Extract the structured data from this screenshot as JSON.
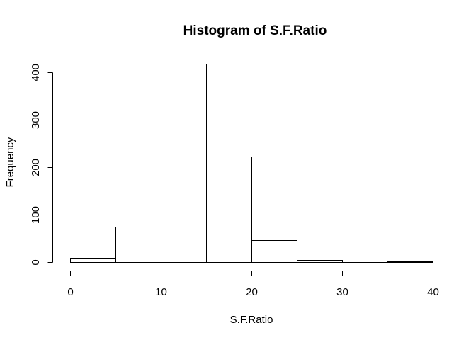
{
  "chart_data": {
    "type": "bar",
    "title": "Histogram of S.F.Ratio",
    "xlabel": "S.F.Ratio",
    "ylabel": "Frequency",
    "bins": [
      {
        "start": 0,
        "end": 5,
        "count": 9
      },
      {
        "start": 5,
        "end": 10,
        "count": 75
      },
      {
        "start": 10,
        "end": 15,
        "count": 418
      },
      {
        "start": 15,
        "end": 20,
        "count": 222
      },
      {
        "start": 20,
        "end": 25,
        "count": 47
      },
      {
        "start": 25,
        "end": 30,
        "count": 5
      },
      {
        "start": 30,
        "end": 35,
        "count": 0
      },
      {
        "start": 35,
        "end": 40,
        "count": 1
      }
    ],
    "xlim": [
      0,
      40
    ],
    "ylim": [
      0,
      418
    ],
    "x_ticks": [
      "0",
      "10",
      "20",
      "30",
      "40"
    ],
    "y_ticks": [
      "0",
      "100",
      "200",
      "300",
      "400"
    ],
    "grid": false,
    "legend": "none",
    "colors": {
      "bar_fill": "#ffffff",
      "bar_stroke": "#000000"
    }
  }
}
